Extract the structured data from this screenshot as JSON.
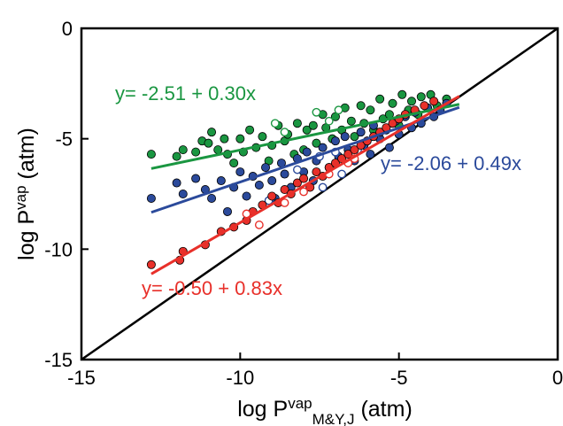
{
  "chart_data": {
    "type": "scatter",
    "title": "",
    "xlabel": {
      "pre": "log P",
      "sup": "vap",
      "sub": "M&Y,J",
      "post": " (atm)"
    },
    "ylabel": {
      "pre": "log P",
      "sup": "vap",
      "post": " (atm)"
    },
    "xlim": [
      -15,
      0
    ],
    "ylim": [
      -15,
      0
    ],
    "xticks": [
      -15,
      -10,
      -5,
      0
    ],
    "yticks": [
      -15,
      -10,
      -5,
      0
    ],
    "xtick_labels": [
      "-15",
      "-10",
      "-5",
      "0"
    ],
    "ytick_labels": [
      "-15",
      "-10",
      "-5",
      "0"
    ],
    "grid": false,
    "legend": "none",
    "reference_line": {
      "intercept": 0,
      "slope": 1,
      "color": "#000000"
    },
    "series": [
      {
        "color": "#1a9641",
        "fit": {
          "intercept": -2.51,
          "slope": 0.3,
          "x_range": [
            -12.8,
            -3.1
          ]
        },
        "equation": "y= -2.51 + 0.30x",
        "points": [
          [
            -12.8,
            -5.7
          ],
          [
            -12.0,
            -5.8
          ],
          [
            -11.8,
            -5.5
          ],
          [
            -11.4,
            -5.6
          ],
          [
            -11.2,
            -5.1
          ],
          [
            -11.0,
            -5.2
          ],
          [
            -10.9,
            -4.7
          ],
          [
            -10.7,
            -5.5
          ],
          [
            -10.5,
            -5.0
          ],
          [
            -10.4,
            -5.7
          ],
          [
            -10.2,
            -6.1
          ],
          [
            -10.0,
            -5.0
          ],
          [
            -9.9,
            -5.6
          ],
          [
            -9.7,
            -4.6
          ],
          [
            -9.5,
            -5.4
          ],
          [
            -9.3,
            -4.9
          ],
          [
            -9.1,
            -6.0
          ],
          [
            -9.0,
            -5.3
          ],
          [
            -8.8,
            -4.4
          ],
          [
            -8.6,
            -5.1
          ],
          [
            -8.5,
            -4.8
          ],
          [
            -8.3,
            -5.7
          ],
          [
            -8.2,
            -4.3
          ],
          [
            -8.0,
            -5.5
          ],
          [
            -7.9,
            -4.6
          ],
          [
            -7.7,
            -4.4
          ],
          [
            -7.6,
            -5.2
          ],
          [
            -7.4,
            -3.9
          ],
          [
            -7.3,
            -4.5
          ],
          [
            -7.1,
            -5.0
          ],
          [
            -7.0,
            -4.0
          ],
          [
            -6.8,
            -4.6
          ],
          [
            -6.7,
            -3.6
          ],
          [
            -6.5,
            -4.2
          ],
          [
            -6.4,
            -4.9
          ],
          [
            -6.2,
            -3.5
          ],
          [
            -6.1,
            -4.3
          ],
          [
            -5.9,
            -3.7
          ],
          [
            -5.8,
            -4.6
          ],
          [
            -5.6,
            -3.2
          ],
          [
            -5.5,
            -4.1
          ],
          [
            -5.3,
            -3.9
          ],
          [
            -5.2,
            -3.4
          ],
          [
            -5.0,
            -4.4
          ],
          [
            -4.9,
            -3.0
          ],
          [
            -4.7,
            -3.7
          ],
          [
            -4.6,
            -3.3
          ],
          [
            -4.4,
            -3.9
          ],
          [
            -4.3,
            -3.1
          ],
          [
            -4.1,
            -3.6
          ],
          [
            -4.0,
            -3.0
          ],
          [
            -3.8,
            -3.5
          ],
          [
            -3.5,
            -3.2
          ]
        ],
        "open_points": [
          [
            -8.6,
            -4.7
          ],
          [
            -7.6,
            -3.8
          ],
          [
            -7.2,
            -4.2
          ],
          [
            -6.9,
            -3.7
          ],
          [
            -8.9,
            -4.3
          ]
        ]
      },
      {
        "color": "#2b4a9b",
        "fit": {
          "intercept": -2.06,
          "slope": 0.49,
          "x_range": [
            -12.8,
            -3.1
          ]
        },
        "equation": "y= -2.06 + 0.49x",
        "points": [
          [
            -12.8,
            -7.7
          ],
          [
            -12.0,
            -7.0
          ],
          [
            -11.8,
            -7.5
          ],
          [
            -11.4,
            -6.8
          ],
          [
            -11.1,
            -7.3
          ],
          [
            -10.9,
            -7.7
          ],
          [
            -10.6,
            -6.9
          ],
          [
            -10.4,
            -8.3
          ],
          [
            -10.2,
            -7.2
          ],
          [
            -10.0,
            -6.5
          ],
          [
            -9.8,
            -7.6
          ],
          [
            -9.6,
            -6.7
          ],
          [
            -9.4,
            -7.1
          ],
          [
            -9.2,
            -6.3
          ],
          [
            -9.0,
            -6.9
          ],
          [
            -8.9,
            -7.7
          ],
          [
            -8.7,
            -6.1
          ],
          [
            -8.6,
            -6.6
          ],
          [
            -8.4,
            -7.2
          ],
          [
            -8.2,
            -5.9
          ],
          [
            -8.0,
            -6.5
          ],
          [
            -7.9,
            -5.6
          ],
          [
            -7.7,
            -6.9
          ],
          [
            -7.6,
            -6.0
          ],
          [
            -7.4,
            -5.4
          ],
          [
            -7.2,
            -6.3
          ],
          [
            -7.0,
            -5.1
          ],
          [
            -6.9,
            -5.8
          ],
          [
            -6.7,
            -4.9
          ],
          [
            -6.6,
            -5.5
          ],
          [
            -6.4,
            -6.0
          ],
          [
            -6.2,
            -4.7
          ],
          [
            -6.1,
            -5.3
          ],
          [
            -5.9,
            -5.7
          ],
          [
            -5.8,
            -4.4
          ],
          [
            -5.6,
            -5.0
          ],
          [
            -5.4,
            -4.6
          ],
          [
            -5.3,
            -5.4
          ],
          [
            -5.1,
            -4.2
          ],
          [
            -5.0,
            -4.8
          ],
          [
            -4.8,
            -4.0
          ],
          [
            -4.6,
            -4.5
          ],
          [
            -4.5,
            -3.8
          ],
          [
            -4.3,
            -4.3
          ],
          [
            -4.1,
            -3.6
          ],
          [
            -3.9,
            -4.0
          ],
          [
            -3.7,
            -3.7
          ],
          [
            -3.5,
            -3.4
          ]
        ],
        "open_points": [
          [
            -8.2,
            -6.4
          ],
          [
            -7.5,
            -5.8
          ],
          [
            -7.0,
            -5.6
          ],
          [
            -6.8,
            -6.6
          ],
          [
            -7.4,
            -7.2
          ],
          [
            -9.1,
            -7.8
          ],
          [
            -6.3,
            -5.5
          ]
        ]
      },
      {
        "color": "#e8302a",
        "fit": {
          "intercept": -0.5,
          "slope": 0.83,
          "x_range": [
            -12.8,
            -3.1
          ]
        },
        "equation": "y= -0.50 + 0.83x",
        "points": [
          [
            -12.8,
            -10.7
          ],
          [
            -11.9,
            -10.5
          ],
          [
            -11.8,
            -10.1
          ],
          [
            -11.1,
            -9.8
          ],
          [
            -10.6,
            -9.2
          ],
          [
            -10.2,
            -9.0
          ],
          [
            -9.8,
            -8.7
          ],
          [
            -9.6,
            -8.3
          ],
          [
            -9.3,
            -8.0
          ],
          [
            -9.0,
            -7.6
          ],
          [
            -8.8,
            -7.9
          ],
          [
            -8.6,
            -7.3
          ],
          [
            -8.4,
            -7.5
          ],
          [
            -8.2,
            -7.0
          ],
          [
            -8.0,
            -6.8
          ],
          [
            -7.8,
            -7.2
          ],
          [
            -7.6,
            -6.5
          ],
          [
            -7.4,
            -6.7
          ],
          [
            -7.2,
            -6.3
          ],
          [
            -7.0,
            -6.1
          ],
          [
            -6.8,
            -5.9
          ],
          [
            -6.6,
            -5.7
          ],
          [
            -6.4,
            -5.5
          ],
          [
            -6.2,
            -5.3
          ],
          [
            -6.0,
            -5.1
          ],
          [
            -5.8,
            -4.9
          ],
          [
            -5.6,
            -4.7
          ],
          [
            -5.4,
            -4.5
          ],
          [
            -5.2,
            -4.3
          ],
          [
            -5.0,
            -4.1
          ],
          [
            -4.8,
            -3.9
          ],
          [
            -4.5,
            -3.7
          ],
          [
            -4.2,
            -3.5
          ],
          [
            -3.9,
            -3.3
          ]
        ],
        "open_points": [
          [
            -9.8,
            -8.4
          ],
          [
            -9.4,
            -8.9
          ],
          [
            -8.6,
            -7.9
          ],
          [
            -8.0,
            -7.4
          ],
          [
            -7.2,
            -6.6
          ],
          [
            -6.6,
            -6.1
          ],
          [
            -6.4,
            -5.9
          ]
        ]
      }
    ]
  }
}
